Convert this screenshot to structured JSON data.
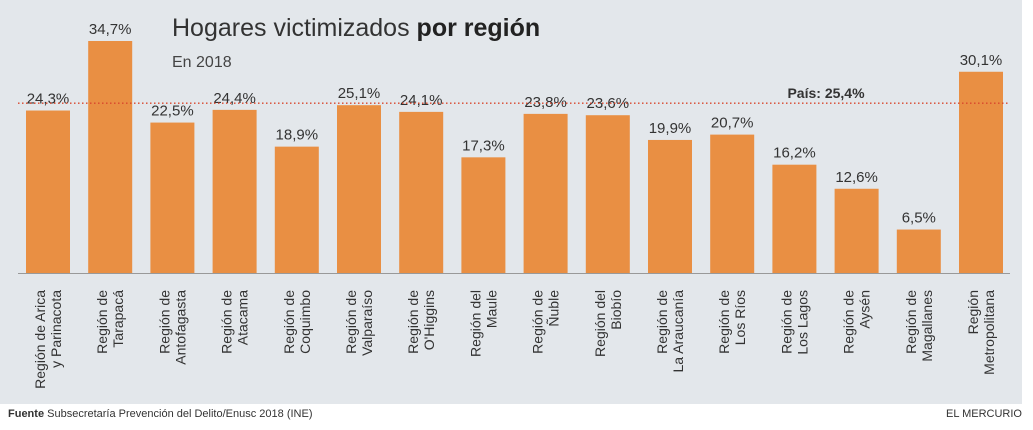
{
  "chart_data": {
    "type": "bar",
    "title": "Hogares victimizados",
    "title_bold": "por región",
    "subtitle": "En 2018",
    "categories": [
      [
        "Región de Arica",
        "y Parinacota"
      ],
      [
        "Región de",
        "Tarapacá"
      ],
      [
        "Región de",
        "Antofagasta"
      ],
      [
        "Región de",
        "Atacama"
      ],
      [
        "Región de",
        "Coquimbo"
      ],
      [
        "Región de",
        "Valparaíso"
      ],
      [
        "Región de",
        "O'Higgins"
      ],
      [
        "Región del",
        "Maule"
      ],
      [
        "Región de",
        "Ñuble"
      ],
      [
        "Región del",
        "Biobío"
      ],
      [
        "Región de",
        "La Araucanía"
      ],
      [
        "Región de",
        "Los Ríos"
      ],
      [
        "Región de",
        "Los Lagos"
      ],
      [
        "Región de",
        "Aysén"
      ],
      [
        "Región de",
        "Magallanes"
      ],
      [
        "Región",
        "Metropolitana"
      ]
    ],
    "values": [
      24.3,
      34.7,
      22.5,
      24.4,
      18.9,
      25.1,
      24.1,
      17.3,
      23.8,
      23.6,
      19.9,
      20.7,
      16.2,
      12.6,
      6.5,
      30.1
    ],
    "value_labels": [
      "24,3%",
      "34,7%",
      "22,5%",
      "24,4%",
      "18,9%",
      "25,1%",
      "24,1%",
      "17,3%",
      "23,8%",
      "23,6%",
      "19,9%",
      "20,7%",
      "16,2%",
      "12,6%",
      "6,5%",
      "30,1%"
    ],
    "reference": {
      "label": "País: 25,4%",
      "value": 25.4
    },
    "ylim": [
      0,
      35
    ],
    "grid": false,
    "colors": {
      "bar": "#e98f43",
      "background": "#e3e7eb",
      "reference": "#d9452b"
    }
  },
  "footer": {
    "source_label": "Fuente",
    "source": "Subsecretaría Prevención del Delito/Enusc 2018 (INE)",
    "brand": "EL MERCURIO"
  }
}
